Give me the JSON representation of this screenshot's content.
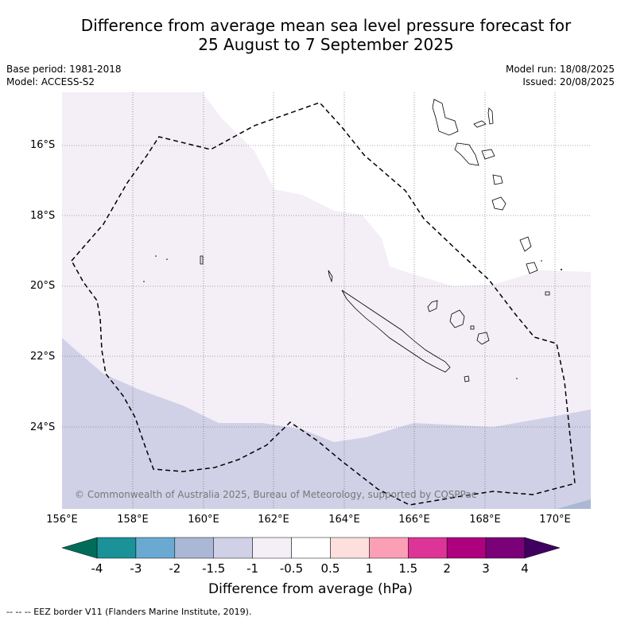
{
  "title_line1": "Difference from average mean sea level pressure forecast for",
  "title_line2": "25 August to 7 September 2025",
  "base_period": "Base period: 1981-2018",
  "model": "Model: ACCESS-S2",
  "model_run": "Model run: 18/08/2025",
  "issued": "Issued: 20/08/2025",
  "copyright": "© Commonwealth of Australia 2025, Bureau of Meteorology, supported by COSPPac",
  "lat_labels": [
    "16°S",
    "18°S",
    "20°S",
    "22°S",
    "24°S"
  ],
  "lon_labels": [
    "156°E",
    "158°E",
    "160°E",
    "162°E",
    "164°E",
    "166°E",
    "168°E",
    "170°E"
  ],
  "colorbar": {
    "title": "Difference from average (hPa)",
    "ticks": [
      "-4",
      "-3",
      "-2",
      "-1.5",
      "-1",
      "-0.5",
      "0.5",
      "1",
      "1.5",
      "2",
      "3",
      "4"
    ],
    "colors": [
      "#1b9297",
      "#6aaad2",
      "#abb8d5",
      "#d0d1e6",
      "#f4eef7",
      "#ffffff",
      "#fde0dd",
      "#fa9fb5",
      "#dd3497",
      "#ae017e",
      "#7a0177",
      "#49006a"
    ],
    "under_color": "#016c59",
    "over_color": "#3f0060"
  },
  "footer": "--  --  -- EEZ border V11 (Flanders Marine Institute, 2019).",
  "map": {
    "lon_range": [
      156,
      171
    ],
    "lat_range": [
      -14.5,
      -26.3
    ]
  }
}
